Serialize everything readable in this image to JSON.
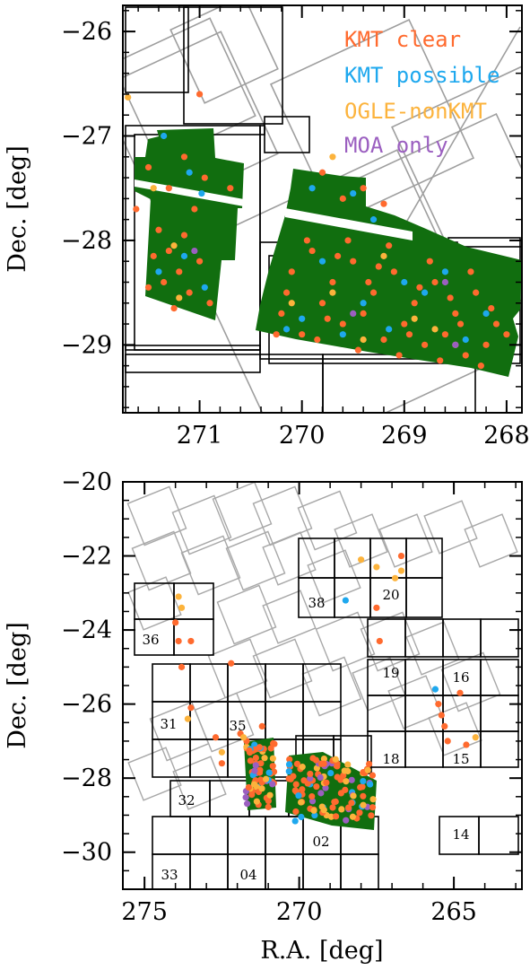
{
  "chart_data": [
    {
      "type": "scatter",
      "xlabel": "",
      "ylabel": "Dec. [deg]",
      "xlim": [
        271.75,
        267.85
      ],
      "ylim": [
        -29.65,
        -25.75
      ],
      "xticks": [
        "271",
        "270",
        "269",
        "268"
      ],
      "xtick_values": [
        271,
        270,
        269,
        268
      ],
      "yticks": [
        "−26",
        "−27",
        "−28",
        "−29"
      ],
      "ytick_values": [
        -26,
        -27,
        -28,
        -29
      ],
      "legend_placement": "top-right",
      "series": [
        {
          "name": "KMT clear",
          "color": "#ff6a2e",
          "points": [
            [
              271.5,
              -27.3
            ],
            [
              271.3,
              -27.5
            ],
            [
              271.15,
              -27.2
            ],
            [
              271.05,
              -27.7
            ],
            [
              271.4,
              -27.9
            ],
            [
              271.3,
              -28.1
            ],
            [
              271.2,
              -28.3
            ],
            [
              271.1,
              -28.5
            ],
            [
              271.45,
              -28.15
            ],
            [
              271.35,
              -28.4
            ],
            [
              271.0,
              -28.2
            ],
            [
              270.9,
              -28.6
            ],
            [
              271.25,
              -28.65
            ],
            [
              271.5,
              -28.45
            ],
            [
              271.15,
              -27.95
            ],
            [
              270.95,
              -27.4
            ],
            [
              271.0,
              -26.6
            ],
            [
              271.62,
              -27.7
            ],
            [
              270.7,
              -27.5
            ],
            [
              269.8,
              -27.35
            ],
            [
              269.6,
              -27.6
            ],
            [
              269.4,
              -27.5
            ],
            [
              269.2,
              -27.65
            ],
            [
              270.1,
              -28.3
            ],
            [
              269.9,
              -28.1
            ],
            [
              269.7,
              -28.4
            ],
            [
              269.5,
              -28.2
            ],
            [
              269.3,
              -28.5
            ],
            [
              269.1,
              -28.3
            ],
            [
              268.9,
              -28.6
            ],
            [
              268.7,
              -28.4
            ],
            [
              268.5,
              -28.7
            ],
            [
              268.3,
              -28.5
            ],
            [
              268.1,
              -28.8
            ],
            [
              270.2,
              -28.7
            ],
            [
              270.0,
              -28.9
            ],
            [
              269.8,
              -28.6
            ],
            [
              269.6,
              -28.8
            ],
            [
              269.4,
              -28.7
            ],
            [
              269.2,
              -28.95
            ],
            [
              269.0,
              -28.8
            ],
            [
              268.8,
              -29.0
            ],
            [
              268.6,
              -28.9
            ],
            [
              268.4,
              -29.1
            ],
            [
              268.2,
              -29.0
            ],
            [
              268.0,
              -28.9
            ],
            [
              269.95,
              -28.0
            ],
            [
              269.55,
              -28.0
            ],
            [
              269.15,
              -28.05
            ],
            [
              268.75,
              -28.2
            ],
            [
              268.35,
              -28.3
            ],
            [
              270.15,
              -28.5
            ],
            [
              269.75,
              -28.75
            ],
            [
              269.35,
              -28.4
            ],
            [
              268.95,
              -28.9
            ],
            [
              268.55,
              -28.55
            ],
            [
              268.15,
              -28.65
            ],
            [
              270.25,
              -28.9
            ],
            [
              269.85,
              -28.95
            ],
            [
              269.45,
              -29.05
            ],
            [
              269.05,
              -29.1
            ],
            [
              268.65,
              -29.15
            ],
            [
              268.25,
              -29.2
            ],
            [
              269.65,
              -28.15
            ],
            [
              269.25,
              -28.25
            ],
            [
              268.85,
              -28.45
            ],
            [
              268.45,
              -28.8
            ]
          ]
        },
        {
          "name": "KMT possible",
          "color": "#1ea8ee",
          "points": [
            [
              271.35,
              -27.0
            ],
            [
              271.1,
              -27.35
            ],
            [
              271.4,
              -28.3
            ],
            [
              271.15,
              -28.15
            ],
            [
              270.95,
              -28.45
            ],
            [
              270.98,
              -27.55
            ],
            [
              269.9,
              -27.5
            ],
            [
              269.5,
              -27.55
            ],
            [
              269.3,
              -27.8
            ],
            [
              269.8,
              -28.2
            ],
            [
              269.4,
              -28.6
            ],
            [
              268.8,
              -28.5
            ],
            [
              268.6,
              -28.3
            ],
            [
              268.2,
              -28.7
            ],
            [
              270.0,
              -28.75
            ],
            [
              269.6,
              -28.9
            ],
            [
              269.0,
              -28.4
            ],
            [
              268.4,
              -28.95
            ],
            [
              270.15,
              -28.85
            ],
            [
              269.15,
              -28.85
            ]
          ]
        },
        {
          "name": "OGLE-nonKMT",
          "color": "#fcb33c",
          "points": [
            [
              271.7,
              -26.63
            ],
            [
              269.7,
              -27.2
            ],
            [
              271.25,
              -28.05
            ],
            [
              271.2,
              -28.55
            ],
            [
              271.45,
              -27.5
            ],
            [
              269.7,
              -28.5
            ],
            [
              269.2,
              -28.15
            ],
            [
              268.9,
              -28.75
            ],
            [
              268.5,
              -29.0
            ],
            [
              270.1,
              -28.6
            ],
            [
              269.4,
              -28.95
            ],
            [
              268.7,
              -28.85
            ]
          ]
        },
        {
          "name": "MOA only",
          "color": "#9b5fc0",
          "points": [
            [
              271.05,
              -28.1
            ],
            [
              269.5,
              -28.7
            ],
            [
              268.6,
              -28.4
            ],
            [
              268.5,
              -29.0
            ]
          ]
        }
      ]
    },
    {
      "type": "scatter",
      "xlabel": "R.A. [deg]",
      "ylabel": "Dec. [deg]",
      "xlim": [
        275.7,
        262.8
      ],
      "ylim": [
        -31.0,
        -20.0
      ],
      "xticks": [
        "275",
        "270",
        "265"
      ],
      "xtick_values": [
        275,
        270,
        265
      ],
      "yticks": [
        "−20",
        "−22",
        "−24",
        "−26",
        "−28",
        "−30"
      ],
      "ytick_values": [
        -20,
        -22,
        -24,
        -26,
        -28,
        -30
      ],
      "field_labels": [
        "38",
        "20",
        "36",
        "19",
        "16",
        "31",
        "35",
        "18",
        "15",
        "32",
        "02",
        "14",
        "33",
        "04"
      ],
      "series": [
        {
          "name": "KMT clear",
          "color": "#ff6a2e",
          "points": [
            [
              274.0,
              -23.8
            ],
            [
              273.9,
              -24.3
            ],
            [
              273.5,
              -24.3
            ],
            [
              273.8,
              -25.0
            ],
            [
              273.5,
              -26.1
            ],
            [
              272.7,
              -26.9
            ],
            [
              272.5,
              -27.6
            ],
            [
              272.2,
              -24.9
            ],
            [
              271.9,
              -26.8
            ],
            [
              271.7,
              -27.0
            ],
            [
              271.6,
              -27.3
            ],
            [
              271.2,
              -26.6
            ],
            [
              266.7,
              -22.0
            ],
            [
              267.5,
              -23.4
            ],
            [
              267.4,
              -24.3
            ],
            [
              265.5,
              -26.0
            ],
            [
              265.4,
              -26.3
            ],
            [
              265.3,
              -26.6
            ],
            [
              265.2,
              -27.0
            ],
            [
              264.8,
              -25.7
            ],
            [
              264.6,
              -27.1
            ]
          ]
        },
        {
          "name": "KMT possible",
          "color": "#1ea8ee",
          "points": [
            [
              268.5,
              -23.2
            ],
            [
              265.6,
              -25.6
            ]
          ]
        },
        {
          "name": "OGLE-nonKMT",
          "color": "#fcb33c",
          "points": [
            [
              273.9,
              -23.1
            ],
            [
              273.8,
              -23.4
            ],
            [
              273.6,
              -26.4
            ],
            [
              272.5,
              -27.3
            ],
            [
              271.8,
              -26.9
            ],
            [
              268.0,
              -22.1
            ],
            [
              267.5,
              -22.3
            ],
            [
              266.7,
              -22.4
            ],
            [
              264.3,
              -26.9
            ],
            [
              266.9,
              -22.6
            ]
          ]
        }
      ],
      "dense_cluster_note": ""
    }
  ]
}
